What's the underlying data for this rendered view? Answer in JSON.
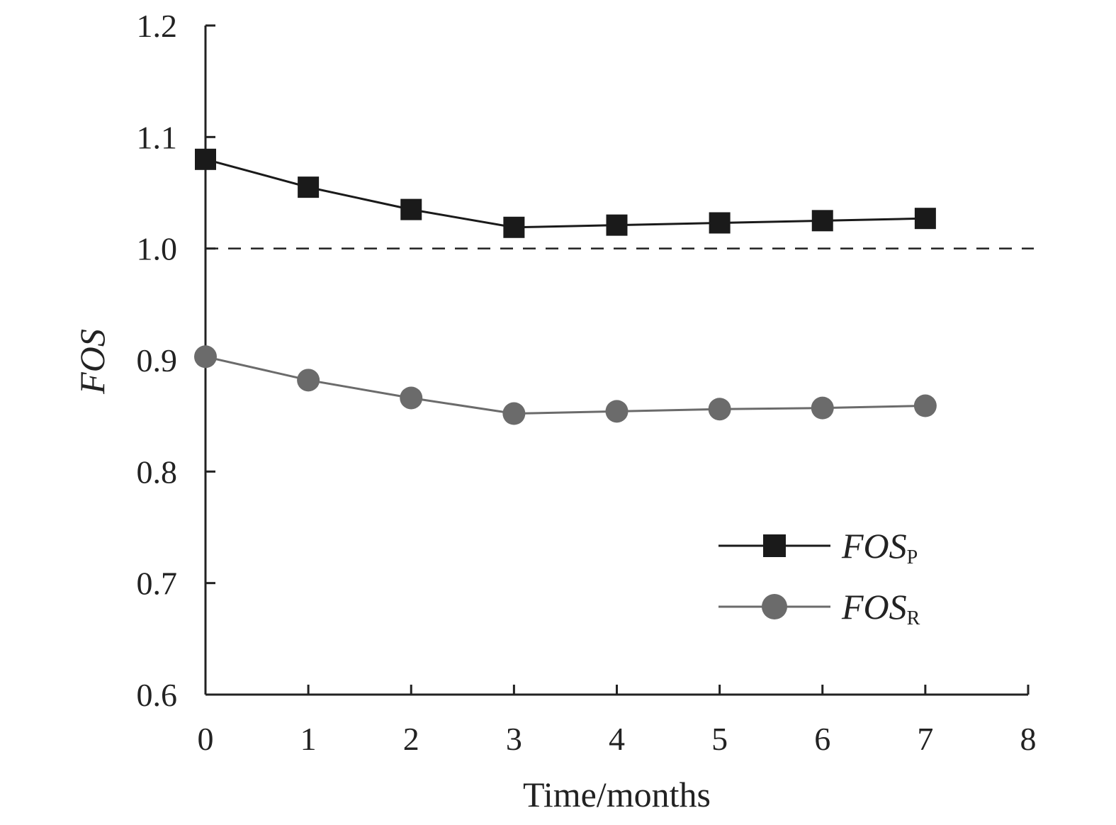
{
  "chart_data": {
    "type": "line",
    "xlabel": "Time/months",
    "ylabel": "FOS",
    "xlim": [
      0,
      8
    ],
    "ylim": [
      0.6,
      1.2
    ],
    "xticks": [
      "0",
      "1",
      "2",
      "3",
      "4",
      "5",
      "6",
      "7",
      "8"
    ],
    "yticks": [
      "0.6",
      "0.7",
      "0.8",
      "0.9",
      "1.0",
      "1.1",
      "1.2"
    ],
    "x": [
      0,
      1,
      2,
      3,
      4,
      5,
      6,
      7
    ],
    "series": [
      {
        "name": "FOS",
        "subscript": "P",
        "marker": "square",
        "color": "#1a1a1a",
        "values": [
          1.08,
          1.055,
          1.035,
          1.019,
          1.021,
          1.023,
          1.025,
          1.027
        ]
      },
      {
        "name": "FOS",
        "subscript": "R",
        "marker": "circle",
        "color": "#6b6b6b",
        "values": [
          0.903,
          0.882,
          0.866,
          0.852,
          0.854,
          0.856,
          0.857,
          0.859
        ]
      }
    ],
    "reference_line": {
      "y": 1.0,
      "style": "dashed"
    },
    "grid": false,
    "legend_position": "lower-right"
  }
}
